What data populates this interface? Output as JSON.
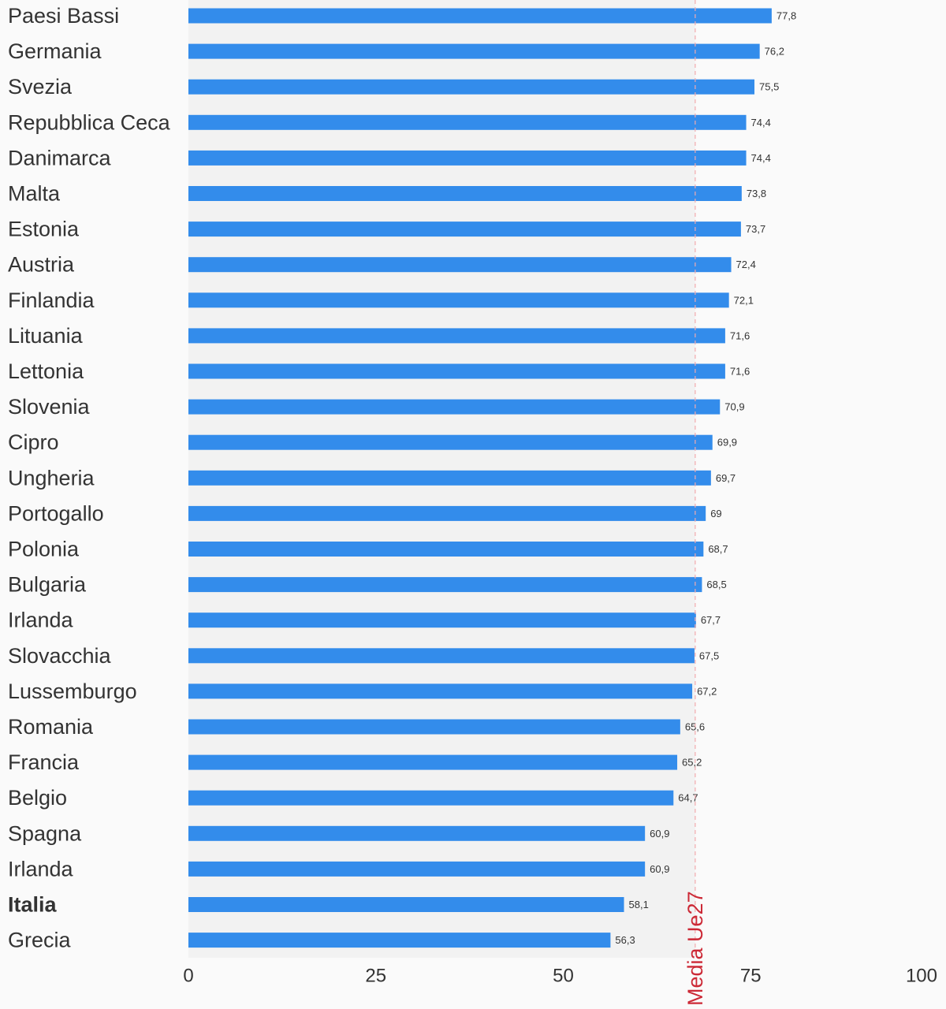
{
  "chart_data": {
    "type": "bar",
    "orientation": "horizontal",
    "categories": [
      "Paesi Bassi",
      "Germania",
      "Svezia",
      "Repubblica Ceca",
      "Danimarca",
      "Malta",
      "Estonia",
      "Austria",
      "Finlandia",
      "Lituania",
      "Lettonia",
      "Slovenia",
      "Cipro",
      "Ungheria",
      "Portogallo",
      "Polonia",
      "Bulgaria",
      "Irlanda",
      "Slovacchia",
      "Lussemburgo",
      "Romania",
      "Francia",
      "Belgio",
      "Spagna",
      "Irlanda",
      "Italia",
      "Grecia"
    ],
    "values": [
      77.8,
      76.2,
      75.5,
      74.4,
      74.4,
      73.8,
      73.7,
      72.4,
      72.1,
      71.6,
      71.6,
      70.9,
      69.9,
      69.7,
      69,
      68.7,
      68.5,
      67.7,
      67.5,
      67.2,
      65.6,
      65.2,
      64.7,
      60.9,
      60.9,
      58.1,
      56.3
    ],
    "value_labels": [
      "77,8",
      "76,2",
      "75,5",
      "74,4",
      "74,4",
      "73,8",
      "73,7",
      "72,4",
      "72,1",
      "71,6",
      "71,6",
      "70,9",
      "69,9",
      "69,7",
      "69",
      "68,7",
      "68,5",
      "67,7",
      "67,5",
      "67,2",
      "65,6",
      "65,2",
      "64,7",
      "60,9",
      "60,9",
      "58,1",
      "56,3"
    ],
    "highlight_category": "Italia",
    "xlim": [
      0,
      100
    ],
    "xticks": [
      0,
      25,
      50,
      75,
      100
    ],
    "reference_line": {
      "value": 67.6,
      "label": "Media Ue27",
      "color": "#cc2936"
    },
    "bar_color": "#338ceb",
    "plot_band_color": "#f2f2f2",
    "background": "#fafafa",
    "grid": false,
    "legend": "none"
  }
}
